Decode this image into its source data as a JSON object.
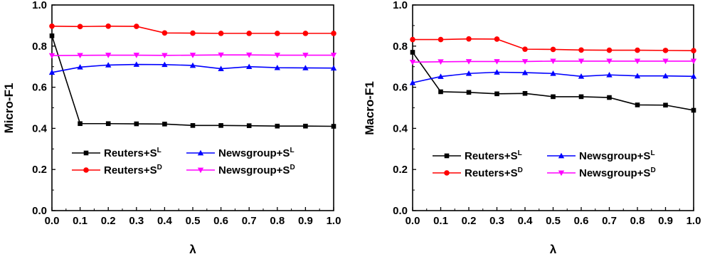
{
  "chart_data": [
    {
      "type": "line",
      "title": "",
      "xlabel": "λ",
      "ylabel": "Micro-F1",
      "xlim": [
        0.0,
        1.0
      ],
      "ylim": [
        0.0,
        1.0
      ],
      "x": [
        0.0,
        0.1,
        0.2,
        0.3,
        0.4,
        0.5,
        0.6,
        0.7,
        0.8,
        0.9,
        1.0
      ],
      "x_tick_labels": [
        "0.0",
        "0.1",
        "0.2",
        "0.3",
        "0.4",
        "0.5",
        "0.6",
        "0.7",
        "0.8",
        "0.9",
        "1.0"
      ],
      "y_ticks": [
        0.0,
        0.2,
        0.4,
        0.6,
        0.8,
        1.0
      ],
      "y_tick_labels": [
        "0.0",
        "0.2",
        "0.4",
        "0.6",
        "0.8",
        "1.0"
      ],
      "grid": false,
      "legend_position": "lower-center",
      "series": [
        {
          "label_main": "Reuters+S",
          "label_sup": "L",
          "color": "#000000",
          "marker": "square",
          "values": [
            0.85,
            0.423,
            0.423,
            0.422,
            0.421,
            0.414,
            0.414,
            0.413,
            0.411,
            0.411,
            0.41
          ]
        },
        {
          "label_main": "Newsgroup+S",
          "label_sup": "L",
          "color": "#0000ff",
          "marker": "triangle-up",
          "values": [
            0.672,
            0.698,
            0.708,
            0.711,
            0.71,
            0.706,
            0.69,
            0.7,
            0.695,
            0.694,
            0.693
          ]
        },
        {
          "label_main": "Reuters+S",
          "label_sup": "D",
          "color": "#ff0000",
          "marker": "circle",
          "values": [
            0.897,
            0.895,
            0.897,
            0.896,
            0.864,
            0.863,
            0.862,
            0.862,
            0.862,
            0.862,
            0.862
          ]
        },
        {
          "label_main": "Newsgroup+S",
          "label_sup": "D",
          "color": "#ff00ff",
          "marker": "triangle-down",
          "values": [
            0.754,
            0.755,
            0.756,
            0.756,
            0.755,
            0.756,
            0.757,
            0.757,
            0.756,
            0.756,
            0.756
          ]
        }
      ]
    },
    {
      "type": "line",
      "title": "",
      "xlabel": "λ",
      "ylabel": "Macro-F1",
      "xlim": [
        0.0,
        1.0
      ],
      "ylim": [
        0.0,
        1.0
      ],
      "x": [
        0.0,
        0.1,
        0.2,
        0.3,
        0.4,
        0.5,
        0.6,
        0.7,
        0.8,
        0.9,
        1.0
      ],
      "x_tick_labels": [
        "0.0",
        "0.1",
        "0.2",
        "0.3",
        "0.4",
        "0.5",
        "0.6",
        "0.7",
        "0.8",
        "0.9",
        "1.0"
      ],
      "y_ticks": [
        0.0,
        0.2,
        0.4,
        0.6,
        0.8,
        1.0
      ],
      "y_tick_labels": [
        "0.0",
        "0.2",
        "0.4",
        "0.6",
        "0.8",
        "1.0"
      ],
      "grid": false,
      "legend_position": "lower-center",
      "series": [
        {
          "label_main": "Reuters+S",
          "label_sup": "L",
          "color": "#000000",
          "marker": "square",
          "values": [
            0.77,
            0.578,
            0.575,
            0.568,
            0.57,
            0.554,
            0.554,
            0.55,
            0.514,
            0.513,
            0.488
          ]
        },
        {
          "label_main": "Newsgroup+S",
          "label_sup": "L",
          "color": "#0000ff",
          "marker": "triangle-up",
          "values": [
            0.622,
            0.652,
            0.667,
            0.673,
            0.671,
            0.667,
            0.653,
            0.66,
            0.655,
            0.655,
            0.653
          ]
        },
        {
          "label_main": "Reuters+S",
          "label_sup": "D",
          "color": "#ff0000",
          "marker": "circle",
          "values": [
            0.832,
            0.832,
            0.835,
            0.834,
            0.785,
            0.784,
            0.781,
            0.78,
            0.78,
            0.779,
            0.778
          ]
        },
        {
          "label_main": "Newsgroup+S",
          "label_sup": "D",
          "color": "#ff00ff",
          "marker": "triangle-down",
          "values": [
            0.722,
            0.724,
            0.725,
            0.725,
            0.725,
            0.727,
            0.727,
            0.727,
            0.727,
            0.727,
            0.727
          ]
        }
      ]
    }
  ]
}
